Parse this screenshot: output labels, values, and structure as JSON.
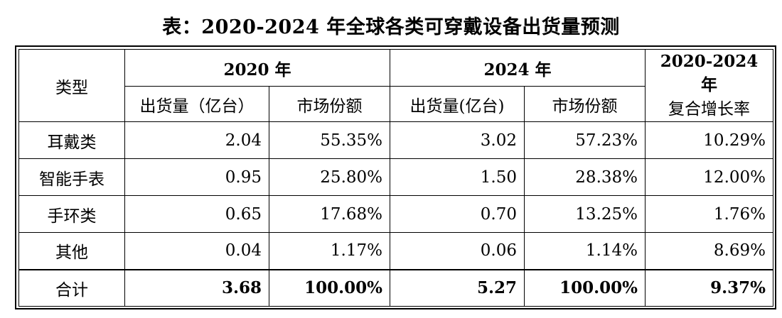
{
  "title": "表：2020-2024 年全球各类可穿戴设备出货量预测",
  "header": {
    "type": "类型",
    "year_2020": "2020 年",
    "year_2024": "2024 年",
    "cagr_line1": "2020-2024 年",
    "cagr_line2": "复合增长率",
    "shipments_2020": "出货量（亿台）",
    "share_2020": "市场份额",
    "shipments_2024": "出货量(亿台)",
    "share_2024": "市场份额"
  },
  "rows": [
    {
      "type": "耳戴类",
      "s2020": "2.04",
      "m2020": "55.35%",
      "s2024": "3.02",
      "m2024": "57.23%",
      "cagr": "10.29%"
    },
    {
      "type": "智能手表",
      "s2020": "0.95",
      "m2020": "25.80%",
      "s2024": "1.50",
      "m2024": "28.38%",
      "cagr": "12.00%"
    },
    {
      "type": "手环类",
      "s2020": "0.65",
      "m2020": "17.68%",
      "s2024": "0.70",
      "m2024": "13.25%",
      "cagr": "1.76%"
    },
    {
      "type": "其他",
      "s2020": "0.04",
      "m2020": "1.17%",
      "s2024": "0.06",
      "m2024": "1.14%",
      "cagr": "8.69%"
    }
  ],
  "total": {
    "type": "合计",
    "s2020": "3.68",
    "m2020": "100.00%",
    "s2024": "5.27",
    "m2024": "100.00%",
    "cagr": "9.37%"
  }
}
